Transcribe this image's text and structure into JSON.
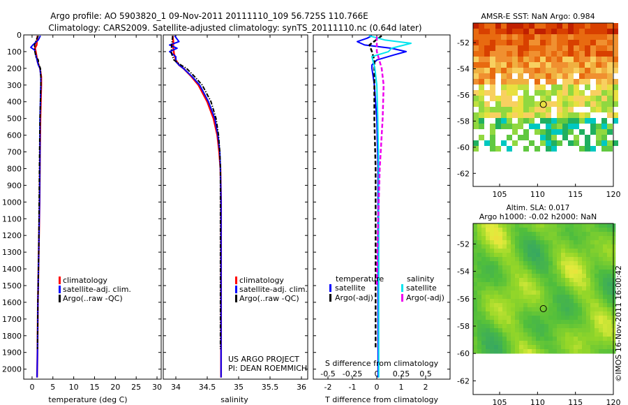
{
  "header": {
    "line1": "Argo profile: AO 5903820_1 09-Nov-2011 20111110_109 56.725S 110.766E",
    "line2": "Climatology: CARS2009. Satellite-adjusted climatology: synTS_20111110.nc (0.64d later)"
  },
  "credits": {
    "project": "US ARGO PROJECT",
    "pi": "PI: DEAN ROEMMICH",
    "imos": "©IMOS 16-Nov-2011 16:00:42"
  },
  "colors": {
    "climatology": "#ff0000",
    "satellite": "#0000ff",
    "argo": "#000000",
    "sal_satellite": "#00e5ee",
    "sal_argo": "#ee00ee"
  },
  "depth_ticks": [
    0,
    100,
    200,
    300,
    400,
    500,
    600,
    700,
    800,
    900,
    1000,
    1100,
    1200,
    1300,
    1400,
    1500,
    1600,
    1700,
    1800,
    1900,
    2000
  ],
  "chart_data": [
    {
      "type": "line",
      "id": "temperature",
      "xlabel": "temperature (deg C)",
      "xlim": [
        -2,
        31
      ],
      "ylim": [
        2060,
        0
      ],
      "xticks": [
        0,
        5,
        10,
        15,
        20,
        25,
        30
      ],
      "yticks": [
        0,
        100,
        200,
        300,
        400,
        500,
        600,
        700,
        800,
        900,
        1000,
        1100,
        1200,
        1300,
        1400,
        1500,
        1600,
        1700,
        1800,
        1900,
        2000
      ],
      "legend": [
        "climatology",
        "satellite-adj. clim.",
        "Argo(..raw -QC)"
      ],
      "series": [
        {
          "name": "climatology",
          "style": "solid",
          "depth": [
            5,
            30,
            60,
            80,
            100,
            130,
            160,
            200,
            250,
            300,
            400,
            500,
            700,
            1000,
            1300,
            1600,
            1900,
            2050
          ],
          "values": [
            1.3,
            1.2,
            1.1,
            0.7,
            0.9,
            1.1,
            1.3,
            1.9,
            2.2,
            2.2,
            2.1,
            2.0,
            1.9,
            1.8,
            1.6,
            1.4,
            1.3,
            1.2
          ]
        },
        {
          "name": "satellite-adj. clim.",
          "style": "solid",
          "depth": [
            5,
            30,
            60,
            75,
            90,
            120,
            150,
            180,
            200,
            250,
            300,
            400,
            500,
            700,
            1000,
            1300,
            1600,
            1900,
            2050
          ],
          "values": [
            2.0,
            1.5,
            0.2,
            -0.3,
            0.6,
            0.9,
            1.2,
            1.5,
            1.9,
            2.1,
            2.1,
            2.0,
            1.9,
            1.9,
            1.8,
            1.6,
            1.4,
            1.3,
            1.2
          ]
        },
        {
          "name": "Argo(..raw -QC)",
          "style": "dashdot",
          "depth": [
            5,
            30,
            60,
            100,
            130,
            150,
            170,
            200,
            250,
            300,
            400,
            500,
            700,
            1000,
            1300,
            1600,
            1880
          ],
          "values": [
            1.5,
            1.0,
            0.6,
            0.7,
            0.9,
            1.5,
            1.5,
            2.0,
            2.1,
            2.1,
            2.0,
            1.9,
            1.8,
            1.7,
            1.6,
            1.4,
            1.3
          ]
        }
      ]
    },
    {
      "type": "line",
      "id": "salinity",
      "xlabel": "salinity",
      "xlim": [
        33.8,
        36.1
      ],
      "ylim": [
        2060,
        0
      ],
      "xticks": [
        34,
        34.5,
        35,
        35.5,
        36
      ],
      "legend": [
        "climatology",
        "satellite-adj. clim.",
        "Argo(..raw -QC)"
      ],
      "series": [
        {
          "name": "climatology",
          "style": "solid",
          "depth": [
            5,
            40,
            80,
            110,
            150,
            180,
            200,
            250,
            300,
            400,
            500,
            600,
            700,
            800,
            1000,
            1200,
            1500,
            1800,
            2050
          ],
          "values": [
            33.95,
            33.96,
            33.96,
            33.97,
            34.0,
            34.05,
            34.12,
            34.25,
            34.36,
            34.5,
            34.6,
            34.66,
            34.69,
            34.71,
            34.72,
            34.72,
            34.72,
            34.72,
            34.72
          ]
        },
        {
          "name": "satellite-adj. clim.",
          "style": "solid",
          "depth": [
            5,
            40,
            60,
            80,
            100,
            130,
            160,
            180,
            200,
            250,
            300,
            400,
            500,
            600,
            700,
            800,
            1000,
            1200,
            1500,
            1800,
            2050
          ],
          "values": [
            33.98,
            34.05,
            33.9,
            34.02,
            33.9,
            34.0,
            34.0,
            34.05,
            34.12,
            34.26,
            34.38,
            34.52,
            34.62,
            34.67,
            34.7,
            34.71,
            34.72,
            34.72,
            34.72,
            34.72,
            34.72
          ]
        },
        {
          "name": "Argo(..raw -QC)",
          "style": "dashdot",
          "depth": [
            5,
            40,
            80,
            110,
            150,
            180,
            200,
            250,
            300,
            400,
            500,
            600,
            700,
            800,
            1000,
            1200,
            1500,
            1880
          ],
          "values": [
            33.95,
            33.94,
            33.93,
            33.93,
            33.97,
            34.08,
            34.17,
            34.3,
            34.42,
            34.56,
            34.64,
            34.68,
            34.7,
            34.71,
            34.71,
            34.71,
            34.71,
            34.71
          ]
        }
      ]
    },
    {
      "type": "line",
      "id": "difference",
      "xlabel": "T difference from climatology",
      "top_axis_label": "S difference from climatology",
      "xlim": [
        -2.6,
        3.0
      ],
      "ylim": [
        2060,
        0
      ],
      "xticks": [
        -2,
        -1,
        0,
        1,
        2
      ],
      "s_xlim": [
        -0.65,
        0.75
      ],
      "s_ticks": [
        -0.5,
        -0.25,
        0,
        0.25,
        0.5
      ],
      "s_tick_labels": [
        "-0.5",
        "-0.25",
        "0",
        "0.25",
        "0.5"
      ],
      "legend_headers": [
        "temperature",
        "salinity"
      ],
      "legend": [
        "satellite",
        "Argo(-adj)",
        "satellite",
        "Argo(-adj)"
      ],
      "series": [
        {
          "name": "satellite",
          "variable": "temperature",
          "style": "solid",
          "depth": [
            5,
            20,
            40,
            60,
            80,
            100,
            120,
            150,
            180,
            200,
            250,
            300,
            500,
            800,
            1200,
            1600,
            2050
          ],
          "values": [
            -0.2,
            -0.4,
            -0.8,
            -0.5,
            0.6,
            1.2,
            0.7,
            0.0,
            -0.2,
            -0.2,
            -0.15,
            -0.1,
            0.0,
            0.05,
            0.05,
            0.05,
            0.05
          ]
        },
        {
          "name": "Argo(-adj)",
          "variable": "temperature",
          "style": "dashed",
          "depth": [
            5,
            60,
            100,
            150,
            200,
            300,
            500,
            800,
            1200,
            1600,
            1880
          ],
          "values": [
            0.2,
            -0.3,
            -0.2,
            -0.1,
            -0.1,
            -0.1,
            -0.1,
            -0.05,
            -0.05,
            -0.05,
            -0.05
          ]
        },
        {
          "name": "satellite",
          "variable": "salinity",
          "style": "solid",
          "depth": [
            5,
            30,
            50,
            80,
            100,
            130,
            200,
            300,
            500,
            800,
            1200,
            1600,
            2050
          ],
          "s_values": [
            -0.08,
            0.08,
            0.35,
            0.15,
            0.12,
            -0.05,
            -0.02,
            0.0,
            0.01,
            0.02,
            0.02,
            0.02,
            0.02
          ]
        },
        {
          "name": "Argo(-adj)",
          "variable": "salinity",
          "style": "dashed",
          "depth": [
            10,
            100,
            200,
            300,
            500,
            800,
            1200,
            1500
          ],
          "s_values": [
            0.0,
            0.0,
            0.05,
            0.07,
            0.06,
            0.03,
            0.01,
            0.0
          ]
        }
      ]
    },
    {
      "type": "heatmap",
      "id": "sst-map",
      "title": "AMSR-E SST: NaN Argo: 0.984",
      "xlim": [
        101.5,
        120
      ],
      "ylim": [
        -63,
        -50.5
      ],
      "xticks": [
        105,
        110,
        115,
        120
      ],
      "yticks": [
        -52,
        -54,
        -56,
        -58,
        -60,
        -62
      ],
      "marker": {
        "lon": 110.766,
        "lat": -56.725
      }
    },
    {
      "type": "heatmap",
      "id": "sla-map",
      "title_line1": "Altim. SLA: 0.017",
      "title_line2": "Argo h1000: -0.02 h2000: NaN",
      "xlim": [
        101.5,
        120
      ],
      "ylim": [
        -63,
        -50.5
      ],
      "xticks": [
        105,
        110,
        115,
        120
      ],
      "yticks": [
        -52,
        -54,
        -56,
        -58,
        -60,
        -62
      ],
      "marker": {
        "lon": 110.766,
        "lat": -56.725
      }
    }
  ]
}
